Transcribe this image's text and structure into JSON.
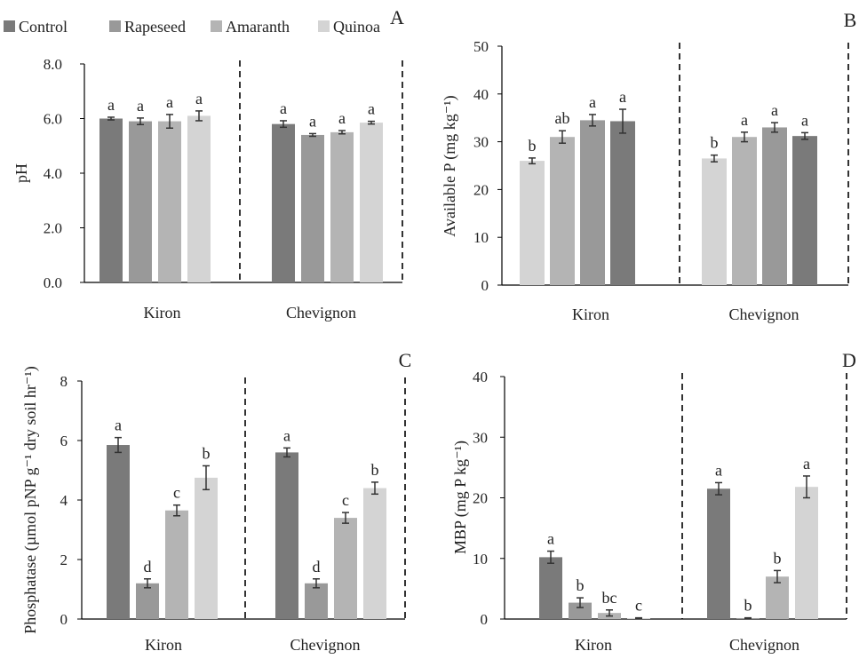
{
  "legend": [
    {
      "name": "Control",
      "color": "#7a7a7a"
    },
    {
      "name": "Rapeseed",
      "color": "#999999"
    },
    {
      "name": "Amaranth",
      "color": "#b4b4b4"
    },
    {
      "name": "Quinoa",
      "color": "#d4d4d4"
    }
  ],
  "chart_data": [
    {
      "panel": "A",
      "type": "bar",
      "ylabel": "pH",
      "ylim": [
        0,
        8
      ],
      "yticks": [
        "0.0",
        "2.0",
        "4.0",
        "6.0",
        "8.0"
      ],
      "categories": [
        "Kiron",
        "Chevignon"
      ],
      "series_colors": [
        "#7a7a7a",
        "#999999",
        "#b4b4b4",
        "#d4d4d4"
      ],
      "values": [
        [
          6.0,
          5.9,
          5.9,
          6.1
        ],
        [
          5.8,
          5.4,
          5.5,
          5.85
        ]
      ],
      "errors": [
        [
          0.05,
          0.12,
          0.25,
          0.18
        ],
        [
          0.12,
          0.05,
          0.06,
          0.05
        ]
      ],
      "letters": [
        [
          "a",
          "a",
          "a",
          "a"
        ],
        [
          "a",
          "a",
          "a",
          "a"
        ]
      ]
    },
    {
      "panel": "B",
      "type": "bar",
      "ylabel": "Available  P  (mg kg⁻¹)",
      "ylim": [
        0,
        50
      ],
      "yticks": [
        "0",
        "10",
        "20",
        "30",
        "40",
        "50"
      ],
      "categories": [
        "Kiron",
        "Chevignon"
      ],
      "series_colors": [
        "#d4d4d4",
        "#b4b4b4",
        "#999999",
        "#7a7a7a"
      ],
      "values": [
        [
          26,
          31,
          34.5,
          34.3
        ],
        [
          26.5,
          31,
          33,
          31.2
        ]
      ],
      "errors": [
        [
          0.6,
          1.3,
          1.2,
          2.5
        ],
        [
          0.7,
          1.0,
          1.0,
          0.7
        ]
      ],
      "letters": [
        [
          "b",
          "ab",
          "a",
          "a"
        ],
        [
          "b",
          "a",
          "a",
          "a"
        ]
      ]
    },
    {
      "panel": "C",
      "type": "bar",
      "ylabel": "Phosphatase  (µmol pNP g⁻¹ dry soil hr⁻¹)",
      "ylim": [
        0,
        8
      ],
      "yticks": [
        "0",
        "2",
        "4",
        "6",
        "8"
      ],
      "categories": [
        "Kiron",
        "Chevignon"
      ],
      "series_colors": [
        "#7a7a7a",
        "#999999",
        "#b4b4b4",
        "#d4d4d4"
      ],
      "values": [
        [
          5.85,
          1.2,
          3.65,
          4.75
        ],
        [
          5.6,
          1.2,
          3.4,
          4.4
        ]
      ],
      "errors": [
        [
          0.25,
          0.15,
          0.18,
          0.4
        ],
        [
          0.15,
          0.15,
          0.18,
          0.2
        ]
      ],
      "letters": [
        [
          "a",
          "d",
          "c",
          "b"
        ],
        [
          "a",
          "d",
          "c",
          "b"
        ]
      ]
    },
    {
      "panel": "D",
      "type": "bar",
      "ylabel": "MBP  (mg P kg⁻¹)",
      "ylim": [
        0,
        40
      ],
      "yticks": [
        "0",
        "10",
        "20",
        "30",
        "40"
      ],
      "categories": [
        "Kiron",
        "Chevignon"
      ],
      "series_colors": [
        "#7a7a7a",
        "#999999",
        "#b4b4b4",
        "#d4d4d4"
      ],
      "values": [
        [
          10.2,
          2.7,
          1.0,
          0.15
        ],
        [
          21.5,
          0.15,
          7.0,
          21.8
        ]
      ],
      "errors": [
        [
          1.0,
          0.8,
          0.5,
          0.05
        ],
        [
          1.0,
          0.05,
          1.0,
          1.8
        ]
      ],
      "letters": [
        [
          "a",
          "b",
          "bc",
          "c"
        ],
        [
          "a",
          "b",
          "b",
          "a"
        ]
      ]
    }
  ]
}
